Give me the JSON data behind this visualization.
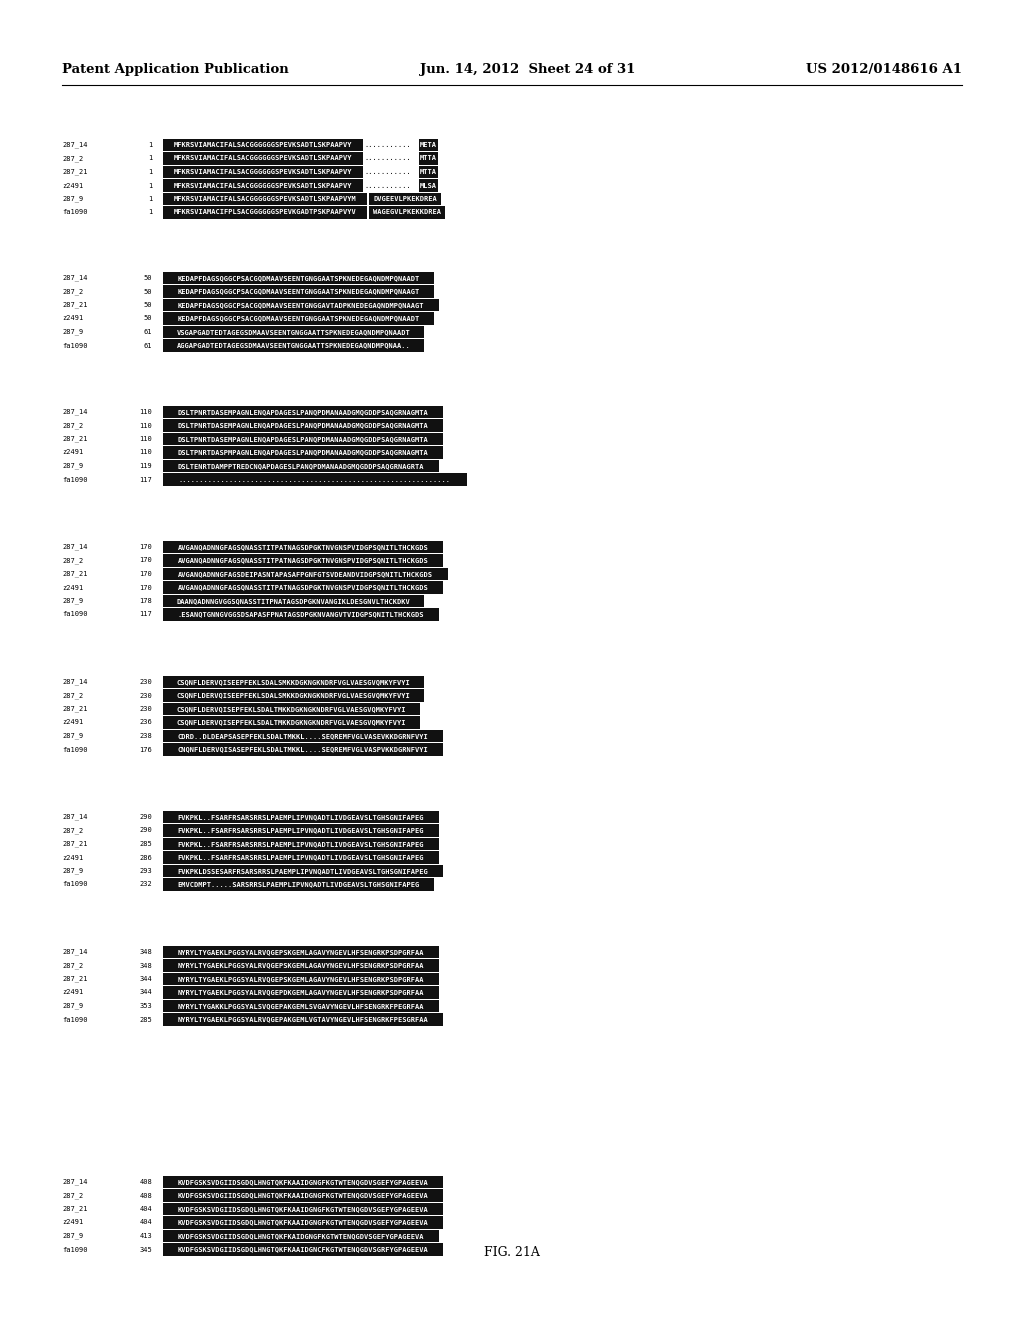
{
  "title_left": "Patent Application Publication",
  "title_center": "Jun. 14, 2012  Sheet 24 of 31",
  "title_right": "US 2012/0148616 A1",
  "figure_label": "FIG. 21A",
  "background_color": "#ffffff",
  "blocks": [
    {
      "sequences": [
        {
          "name": "287_14",
          "num": "1",
          "seq": "MFKRSVIAMACIFALSACGGGGGGSPEVKSADTLSKPAAPVY",
          "gaps": "...........",
          "end_seq": "META"
        },
        {
          "name": "287_2",
          "num": "1",
          "seq": "MFKRSVIAMACIFALSACGGGGGGSPEVKSADTLSKPAAPVY",
          "gaps": "...........",
          "end_seq": "MTTA"
        },
        {
          "name": "287_21",
          "num": "1",
          "seq": "MFKRSVIAMACIFALSACGGGGGGSPEVKSADTLSKPAAPVY",
          "gaps": "...........",
          "end_seq": "MTTA"
        },
        {
          "name": "z2491",
          "num": "1",
          "seq": "MFKRSVIAMACIFALSACGGGGGGSPEVKSADTLSKPAAPVY",
          "gaps": "...........",
          "end_seq": "MLSA"
        },
        {
          "name": "287_9",
          "num": "1",
          "seq": "MFKRSVIAMACIFALSACGGGGGGSPEVKSADTLSKPAAPVYM",
          "gaps": "",
          "end_seq": "DVGEEVLPKEKDREA"
        },
        {
          "name": "fa1090",
          "num": "1",
          "seq": "MFKRSVIAMACIFPLSACGGGGGGSPEVKGADTPSKPAAPVYV",
          "gaps": "",
          "end_seq": "WAGEGVLPKEKKDREA"
        }
      ]
    },
    {
      "sequences": [
        {
          "name": "287_14",
          "num": "50",
          "seq": "KEDAPFDAGSQGGCPSACGQDMAAVSEENTGNGGAATSPKNEDEGAQNDMPQNAADT"
        },
        {
          "name": "287_2",
          "num": "50",
          "seq": "KEDAPFDAGSQGGCPSACGQDMAAVSEENTGNGGAATSPKNEDEGAQNDMPQNAAGT"
        },
        {
          "name": "287_21",
          "num": "50",
          "seq": "KEDAPFDAGSQGGCPSACGQDMAAVSEENTGNGGAVTADPKNEDEGAQNDMPQNAAGT"
        },
        {
          "name": "z2491",
          "num": "50",
          "seq": "KEDAPFDAGSQGGCPSACGQDMAAVSEENTGNGGAATSPKNEDEGAQNDMPQNAADT"
        },
        {
          "name": "287_9",
          "num": "61",
          "seq": "VSGAPGADTEDTAGEGSDMAAVSEENTGNGGAATTSPKNEDEGAQNDMPQNAADT"
        },
        {
          "name": "fa1090",
          "num": "61",
          "seq": "AGGAPGADTEDTAGEGSDMAAVSEENTGNGGAATTSPKNEDEGAQNDMPQNAA.."
        }
      ]
    },
    {
      "sequences": [
        {
          "name": "287_14",
          "num": "110",
          "seq": "DSLTPNRTDASEMPAGNLENQAPDAGESLPANQPDMANAADGMQGDDPSAQGRNAGMTA"
        },
        {
          "name": "287_2",
          "num": "110",
          "seq": "DSLTPNRTDASEMPAGNLENQAPDAGESLPANQPDMANAADGMQGDDPSAQGRNAGMTA"
        },
        {
          "name": "287_21",
          "num": "110",
          "seq": "DSLTPNRTDASEMPAGNLENQAPDAGESLPANQPDMANAADGMQGDDPSAQGRNAGMTA"
        },
        {
          "name": "z2491",
          "num": "110",
          "seq": "DSLTPNRTDASPMPAGNLENQAPDAGESLPANQPDMANAADGMQGDDPSAQGRNAGMTA"
        },
        {
          "name": "287_9",
          "num": "119",
          "seq": "DSLTENRTDAMPPTREDCNQAPDAGESLPANQPDMANAADGMQGDDPSAQGRNAGRTA"
        },
        {
          "name": "fa1090",
          "num": "117",
          "seq": "................................................................"
        }
      ]
    },
    {
      "sequences": [
        {
          "name": "287_14",
          "num": "170",
          "seq": "AVGANQADNNGFAGSQNASSTITPATNAGSDPGKTNVGNSPVIDGPSQNITLTHCKGDS"
        },
        {
          "name": "287_2",
          "num": "170",
          "seq": "AVGANQADNNGFAGSQNASSTITPATNAGSDPGKTNVGNSPVIDGPSQNITLTHCKGDS"
        },
        {
          "name": "287_21",
          "num": "170",
          "seq": "AVGANQADNNGFAGSDEIPASNTAPASAFPGNFGTSVDEANDVIDGPSQNITLTHCKGDS"
        },
        {
          "name": "z2491",
          "num": "170",
          "seq": "AVGANQADNNGFAGSQNASSTITPATNAGSDPGKTNVGNSPVIDGPSQNITLTHCKGDS"
        },
        {
          "name": "287_9",
          "num": "178",
          "seq": "DAANQADNNGVGGSQNASSTITPNATAGSDPGKNVANGIKLDESGNVLTHCKDKV"
        },
        {
          "name": "fa1090",
          "num": "117",
          "seq": ".ESANQTGNNGVGGSDSAPASFPNATAGSDPGKNVANGVTVIDGPSQNITLTHCKGDS"
        }
      ]
    },
    {
      "sequences": [
        {
          "name": "287_14",
          "num": "230",
          "seq": "CSQNFLDERVQISEEPFEKLSDALSMKKDGKNGKNDRFVGLVAESGVQMKYFVYI"
        },
        {
          "name": "287_2",
          "num": "230",
          "seq": "CSQNFLDERVQISEEPFEKLSDALSMKKDGKNGKNDRFVGLVAESGVQMKYFVYI"
        },
        {
          "name": "287_21",
          "num": "230",
          "seq": "CSQNFLDERVQISEPFEKLSDALTMKKDGKNGKNDRFVGLVAESGVQMKYFVYI"
        },
        {
          "name": "z2491",
          "num": "236",
          "seq": "CSQNFLDERVQISEPFEKLSDALTMKKDGKNGKNDRFVGLVAESGVQMKYFVYI"
        },
        {
          "name": "287_9",
          "num": "238",
          "seq": "CDRD..DLDEAPSASEPFEKLSDALTMKKL....SEQREMFVGLVASEVKKDGRNFVYI"
        },
        {
          "name": "fa1090",
          "num": "176",
          "seq": "CNQNFLDERVQISASEPFEKLSDALTMKKL....SEQREMFVGLVASPVKKDGRNFVYI"
        }
      ]
    },
    {
      "sequences": [
        {
          "name": "287_14",
          "num": "290",
          "seq": "FVKPKL..FSARFRSARSRRSLPAEMPLIPVNQADTLIVDGEAVSLTGHSGNIFAPEG"
        },
        {
          "name": "287_2",
          "num": "290",
          "seq": "FVKPKL..FSARFRSARSRRSLPAEMPLIPVNQADTLIVDGEAVSLTGHSGNIFAPEG"
        },
        {
          "name": "287_21",
          "num": "285",
          "seq": "FVKPKL..FSARFRSARSRRSLPAEMPLIPVNQADTLIVDGEAVSLTGHSGNIFAPEG"
        },
        {
          "name": "z2491",
          "num": "286",
          "seq": "FVKPKL..FSARFRSARSRRSLPAEMPLIPVNQADTLIVDGEAVSLTGHSGNIFAPEG"
        },
        {
          "name": "287_9",
          "num": "293",
          "seq": "FVKPKLDSSESARFRSARSRRSLPAEMPLIPVNQADTLIVDGEAVSLTGHSGNIFAPEG"
        },
        {
          "name": "fa1090",
          "num": "232",
          "seq": "EMVCDMPT.....SARSRRSLPAEMPLIPVNQADTLIVDGEAVSLTGHSGNIFAPEG"
        }
      ]
    },
    {
      "sequences": [
        {
          "name": "287_14",
          "num": "348",
          "seq": "NYRYLTYGAEKLPGGSYALRVQGEPSKGEMLAGAVYNGEVLHFSENGRKPSDPGRFAA"
        },
        {
          "name": "287_2",
          "num": "348",
          "seq": "NYRYLTYGAEKLPGGSYALRVQGEPSKGEMLAGAVYNGEVLHFSENGRKPSDPGRFAA"
        },
        {
          "name": "287_21",
          "num": "344",
          "seq": "NYRYLTYGAEKLPGGSYALRVQGEPSKGEMLAGAVYNGEVLHFSENGRKPSDPGRFAA"
        },
        {
          "name": "z2491",
          "num": "344",
          "seq": "NYRYLTYGAEKLPGGSYALRVQGEPDKGEMLAGAVYNGEVLHFSENGRKPSDPGRFAA"
        },
        {
          "name": "287_9",
          "num": "353",
          "seq": "NYRYLTYGAKKLPGGSYALSVQGEPAKGEMLSVGAVYNGEVLHFSENGRKFPEGRFAA"
        },
        {
          "name": "fa1090",
          "num": "285",
          "seq": "NYRYLTYGAEKLPGGSYALRVQGEPAKGEMLVGTAVYNGEVLHFSENGRKFPESGRFAA"
        }
      ]
    },
    {
      "sequences": [
        {
          "name": "287_14",
          "num": "408",
          "seq": "KVDFGSKSVDGIIDSGDQLHNGTQKFKAAIDGNGFKGTWTENQGDVSGEFYGPAGEEVA"
        },
        {
          "name": "287_2",
          "num": "408",
          "seq": "KVDFGSKSVDGIIDSGDQLHNGTQKFKAAIDGNGFKGTWTENQGDVSGEFYGPAGEEVA"
        },
        {
          "name": "287_21",
          "num": "404",
          "seq": "KVDFGSKSVDGIIDSGDQLHNGTQKFKAAIDGNGFKGTWTENQGDVSGEFYGPAGEEVA"
        },
        {
          "name": "z2491",
          "num": "404",
          "seq": "KVDFGSKSVDGIIDSGDQLHNGTQKFKAAIDGNGFKGTWTENQGDVSGEFYGPAGEEVA"
        },
        {
          "name": "287_9",
          "num": "413",
          "seq": "KVDFGSKSVDGIIDSGDQLHNGTQKFKAIDGNGFKGTWTENQGDVSGEFYGPAGEEVA"
        },
        {
          "name": "fa1090",
          "num": "345",
          "seq": "KVDFGSKSVDGIIDSGDQLHNGTQKFKAAIDGNCFKGTWTENQGDVSGRFYGPAGEEVA"
        }
      ]
    }
  ]
}
